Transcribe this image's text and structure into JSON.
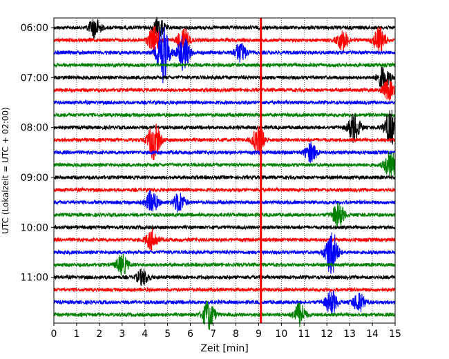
{
  "chart_data": {
    "type": "line",
    "title": "",
    "xlabel": "Zeit  [min]",
    "ylabel": "UTC (Lokalzeit = UTC + 02:00)",
    "xlim": [
      0,
      15
    ],
    "x_ticks": [
      "0",
      "1",
      "2",
      "3",
      "4",
      "5",
      "6",
      "7",
      "8",
      "9",
      "10",
      "11",
      "12",
      "13",
      "14",
      "15"
    ],
    "y_ticks": [
      "06:00",
      "07:00",
      "08:00",
      "09:00",
      "10:00",
      "11:00"
    ],
    "grid": "vertical dotted",
    "trace_interval_minutes": 15,
    "trace_start": "06:00",
    "trace_count": 24,
    "trace_colors": [
      "#000000",
      "#ff0000",
      "#0000ff",
      "#008000"
    ],
    "marker_line": {
      "x": 9.1,
      "color": "#ff0000"
    },
    "events": [
      {
        "trace": 0,
        "x": 1.8,
        "amplitude": 1.0
      },
      {
        "trace": 0,
        "x": 4.6,
        "amplitude": 1.0
      },
      {
        "trace": 1,
        "x": 4.4,
        "amplitude": 1.4
      },
      {
        "trace": 1,
        "x": 5.7,
        "amplitude": 1.2
      },
      {
        "trace": 1,
        "x": 12.7,
        "amplitude": 1.0
      },
      {
        "trace": 1,
        "x": 14.3,
        "amplitude": 1.4
      },
      {
        "trace": 2,
        "x": 4.8,
        "amplitude": 3.0
      },
      {
        "trace": 2,
        "x": 5.7,
        "amplitude": 1.8
      },
      {
        "trace": 2,
        "x": 8.2,
        "amplitude": 1.0
      },
      {
        "trace": 4,
        "x": 14.5,
        "amplitude": 1.2
      },
      {
        "trace": 5,
        "x": 14.7,
        "amplitude": 1.0
      },
      {
        "trace": 8,
        "x": 13.2,
        "amplitude": 1.5
      },
      {
        "trace": 8,
        "x": 14.8,
        "amplitude": 1.8
      },
      {
        "trace": 9,
        "x": 4.4,
        "amplitude": 2.0
      },
      {
        "trace": 9,
        "x": 9.0,
        "amplitude": 1.5
      },
      {
        "trace": 10,
        "x": 11.3,
        "amplitude": 1.0
      },
      {
        "trace": 11,
        "x": 14.8,
        "amplitude": 1.5
      },
      {
        "trace": 14,
        "x": 4.3,
        "amplitude": 1.2
      },
      {
        "trace": 14,
        "x": 5.5,
        "amplitude": 1.0
      },
      {
        "trace": 15,
        "x": 12.5,
        "amplitude": 1.2
      },
      {
        "trace": 17,
        "x": 4.3,
        "amplitude": 1.0
      },
      {
        "trace": 18,
        "x": 12.2,
        "amplitude": 2.5
      },
      {
        "trace": 19,
        "x": 3.0,
        "amplitude": 1.0
      },
      {
        "trace": 20,
        "x": 3.9,
        "amplitude": 0.8
      },
      {
        "trace": 22,
        "x": 12.2,
        "amplitude": 1.2
      },
      {
        "trace": 22,
        "x": 13.4,
        "amplitude": 1.0
      },
      {
        "trace": 23,
        "x": 6.8,
        "amplitude": 1.5
      },
      {
        "trace": 23,
        "x": 10.8,
        "amplitude": 1.2
      }
    ]
  }
}
